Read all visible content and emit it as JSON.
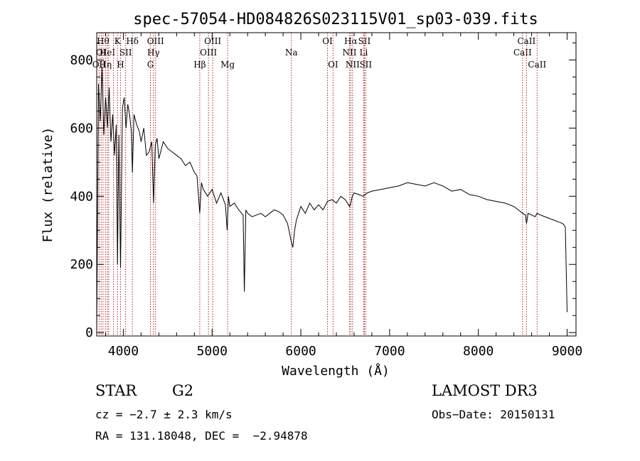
{
  "chart_data": {
    "type": "line",
    "title": "spec-57054-HD084826S023115V01_sp03-039.fits",
    "xlabel": "Wavelength (Å)",
    "ylabel": "Flux (relative)",
    "xlim": [
      3700,
      9100
    ],
    "ylim": [
      -10,
      880
    ],
    "x_ticks": [
      4000,
      5000,
      6000,
      7000,
      8000,
      9000
    ],
    "y_ticks": [
      0,
      200,
      400,
      600,
      800
    ],
    "series": [
      {
        "name": "flux",
        "x": [
          3700,
          3720,
          3740,
          3760,
          3780,
          3800,
          3820,
          3840,
          3860,
          3880,
          3900,
          3920,
          3934,
          3950,
          3968,
          3990,
          4010,
          4030,
          4050,
          4070,
          4090,
          4102,
          4120,
          4150,
          4180,
          4200,
          4230,
          4260,
          4290,
          4320,
          4340,
          4360,
          4380,
          4400,
          4450,
          4500,
          4550,
          4600,
          4650,
          4700,
          4750,
          4800,
          4830,
          4861,
          4880,
          4900,
          4950,
          5000,
          5050,
          5100,
          5150,
          5170,
          5184,
          5200,
          5250,
          5300,
          5350,
          5363,
          5380,
          5400,
          5450,
          5500,
          5550,
          5600,
          5650,
          5700,
          5750,
          5800,
          5850,
          5890,
          5910,
          5930,
          5950,
          6000,
          6050,
          6100,
          6150,
          6200,
          6250,
          6300,
          6350,
          6400,
          6450,
          6500,
          6550,
          6563,
          6580,
          6600,
          6650,
          6700,
          6750,
          6800,
          6900,
          7000,
          7100,
          7200,
          7300,
          7400,
          7500,
          7600,
          7700,
          7800,
          7900,
          8000,
          8100,
          8200,
          8300,
          8400,
          8450,
          8500,
          8530,
          8542,
          8560,
          8600,
          8640,
          8662,
          8700,
          8750,
          8800,
          8850,
          8900,
          8950,
          8980,
          9000
        ],
        "y": [
          0,
          730,
          620,
          780,
          580,
          690,
          600,
          720,
          560,
          640,
          520,
          610,
          200,
          580,
          190,
          660,
          690,
          600,
          670,
          640,
          590,
          470,
          640,
          610,
          590,
          560,
          600,
          520,
          530,
          560,
          380,
          550,
          570,
          510,
          560,
          540,
          530,
          520,
          510,
          490,
          500,
          470,
          460,
          350,
          440,
          420,
          400,
          420,
          380,
          410,
          375,
          300,
          400,
          370,
          380,
          360,
          345,
          120,
          360,
          350,
          340,
          345,
          350,
          340,
          350,
          360,
          355,
          345,
          320,
          270,
          250,
          300,
          330,
          370,
          350,
          380,
          360,
          375,
          360,
          385,
          390,
          380,
          400,
          390,
          370,
          380,
          400,
          410,
          405,
          400,
          410,
          415,
          420,
          425,
          430,
          440,
          435,
          430,
          440,
          430,
          415,
          420,
          405,
          400,
          390,
          385,
          380,
          370,
          360,
          350,
          345,
          320,
          350,
          345,
          340,
          350,
          345,
          340,
          335,
          330,
          325,
          320,
          310,
          60
        ]
      }
    ],
    "lines": [
      {
        "w": 3727,
        "label": "OII",
        "row": 2
      },
      {
        "w": 3750,
        "label": "OI",
        "row": 1
      },
      {
        "w": 3771,
        "label": "Hθ",
        "row": 0
      },
      {
        "w": 3798,
        "label": "Hη",
        "row": 2
      },
      {
        "w": 3820,
        "label": "HeI",
        "row": 1
      },
      {
        "w": 3835,
        "label": "",
        "row": 0
      },
      {
        "w": 3889,
        "label": "",
        "row": 0
      },
      {
        "w": 3934,
        "label": "K",
        "row": 0
      },
      {
        "w": 3968,
        "label": "H",
        "row": 2
      },
      {
        "w": 4026,
        "label": "SII",
        "row": 1
      },
      {
        "w": 4102,
        "label": "Hδ",
        "row": 0
      },
      {
        "w": 4305,
        "label": "G",
        "row": 2
      },
      {
        "w": 4340,
        "label": "Hγ",
        "row": 1
      },
      {
        "w": 4363,
        "label": "OIII",
        "row": 0
      },
      {
        "w": 4861,
        "label": "Hβ",
        "row": 2
      },
      {
        "w": 4959,
        "label": "OIII",
        "row": 1
      },
      {
        "w": 5007,
        "label": "OIII",
        "row": 0
      },
      {
        "w": 5175,
        "label": "Mg",
        "row": 2
      },
      {
        "w": 5893,
        "label": "Na",
        "row": 1
      },
      {
        "w": 6300,
        "label": "OI",
        "row": 0
      },
      {
        "w": 6363,
        "label": "OI",
        "row": 2
      },
      {
        "w": 6548,
        "label": "NII",
        "row": 1
      },
      {
        "w": 6563,
        "label": "Hα",
        "row": 0
      },
      {
        "w": 6583,
        "label": "NII",
        "row": 2
      },
      {
        "w": 6708,
        "label": "Li",
        "row": 1
      },
      {
        "w": 6716,
        "label": "SII",
        "row": 0
      },
      {
        "w": 6731,
        "label": "SII",
        "row": 2
      },
      {
        "w": 8498,
        "label": "CaII",
        "row": 1
      },
      {
        "w": 8542,
        "label": "CaII",
        "row": 0
      },
      {
        "w": 8662,
        "label": "CaII",
        "row": 2
      }
    ]
  },
  "info": {
    "object_class": "STAR",
    "subclass": "G2",
    "survey": "LAMOST DR3",
    "cz": "cz = −2.7 ± 2.3 km/s",
    "obs_date": "Obs−Date: 20150131",
    "radec": "RA = 131.18048, DEC =  −2.94878"
  }
}
